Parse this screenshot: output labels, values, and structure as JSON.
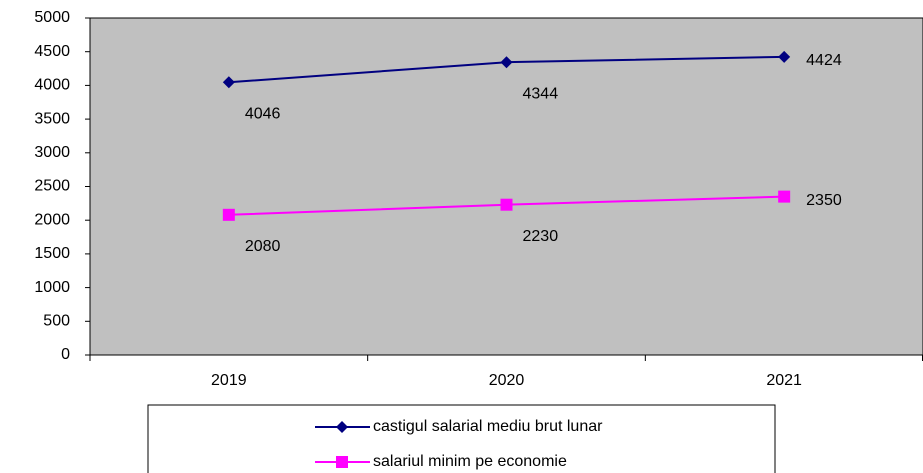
{
  "chart_data": {
    "type": "line",
    "categories": [
      "2019",
      "2020",
      "2021"
    ],
    "series": [
      {
        "name": "castigul salarial mediu brut lunar",
        "color": "#000080",
        "marker": "diamond",
        "values": [
          4046,
          4344,
          4424
        ]
      },
      {
        "name": "salariul minim pe economie",
        "color": "#ff00ff",
        "marker": "square",
        "values": [
          2080,
          2230,
          2350
        ]
      }
    ],
    "ylim": [
      0,
      5000
    ],
    "yticks": [
      0,
      500,
      1000,
      1500,
      2000,
      2500,
      3000,
      3500,
      4000,
      4500,
      5000
    ],
    "plot_background": "#c0c0c0",
    "legend": "bottom"
  }
}
